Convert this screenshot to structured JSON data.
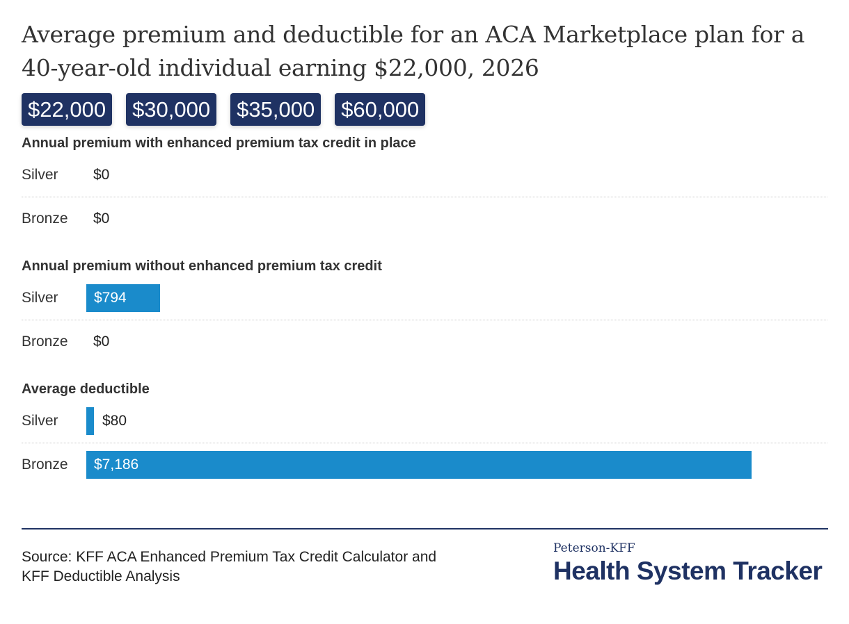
{
  "title": "Average premium and deductible for an ACA Marketplace plan for a 40-year-old individual earning $22,000, 2026",
  "income_buttons": [
    "$22,000",
    "$30,000",
    "$35,000",
    "$60,000"
  ],
  "colors": {
    "bar": "#1a8bcb",
    "button": "#1f3263",
    "label_inside": "#ffffff",
    "label_outside": "#222222"
  },
  "chart_data": {
    "type": "bar",
    "orientation": "horizontal",
    "max_value": 7186,
    "sections": [
      {
        "title": "Annual premium with enhanced premium tax credit in place",
        "rows": [
          {
            "label": "Silver",
            "value": 0,
            "value_label": "$0"
          },
          {
            "label": "Bronze",
            "value": 0,
            "value_label": "$0"
          }
        ]
      },
      {
        "title": "Annual premium without enhanced premium tax credit",
        "rows": [
          {
            "label": "Silver",
            "value": 794,
            "value_label": "$794"
          },
          {
            "label": "Bronze",
            "value": 0,
            "value_label": "$0"
          }
        ]
      },
      {
        "title": "Average deductible",
        "rows": [
          {
            "label": "Silver",
            "value": 80,
            "value_label": "$80"
          },
          {
            "label": "Bronze",
            "value": 7186,
            "value_label": "$7,186"
          }
        ]
      }
    ]
  },
  "source": {
    "line1": "Source: KFF ACA Enhanced Premium Tax Credit Calculator and",
    "line2": "KFF Deductible Analysis"
  },
  "brand": {
    "small": "Peterson-KFF",
    "big": "Health System Tracker"
  }
}
